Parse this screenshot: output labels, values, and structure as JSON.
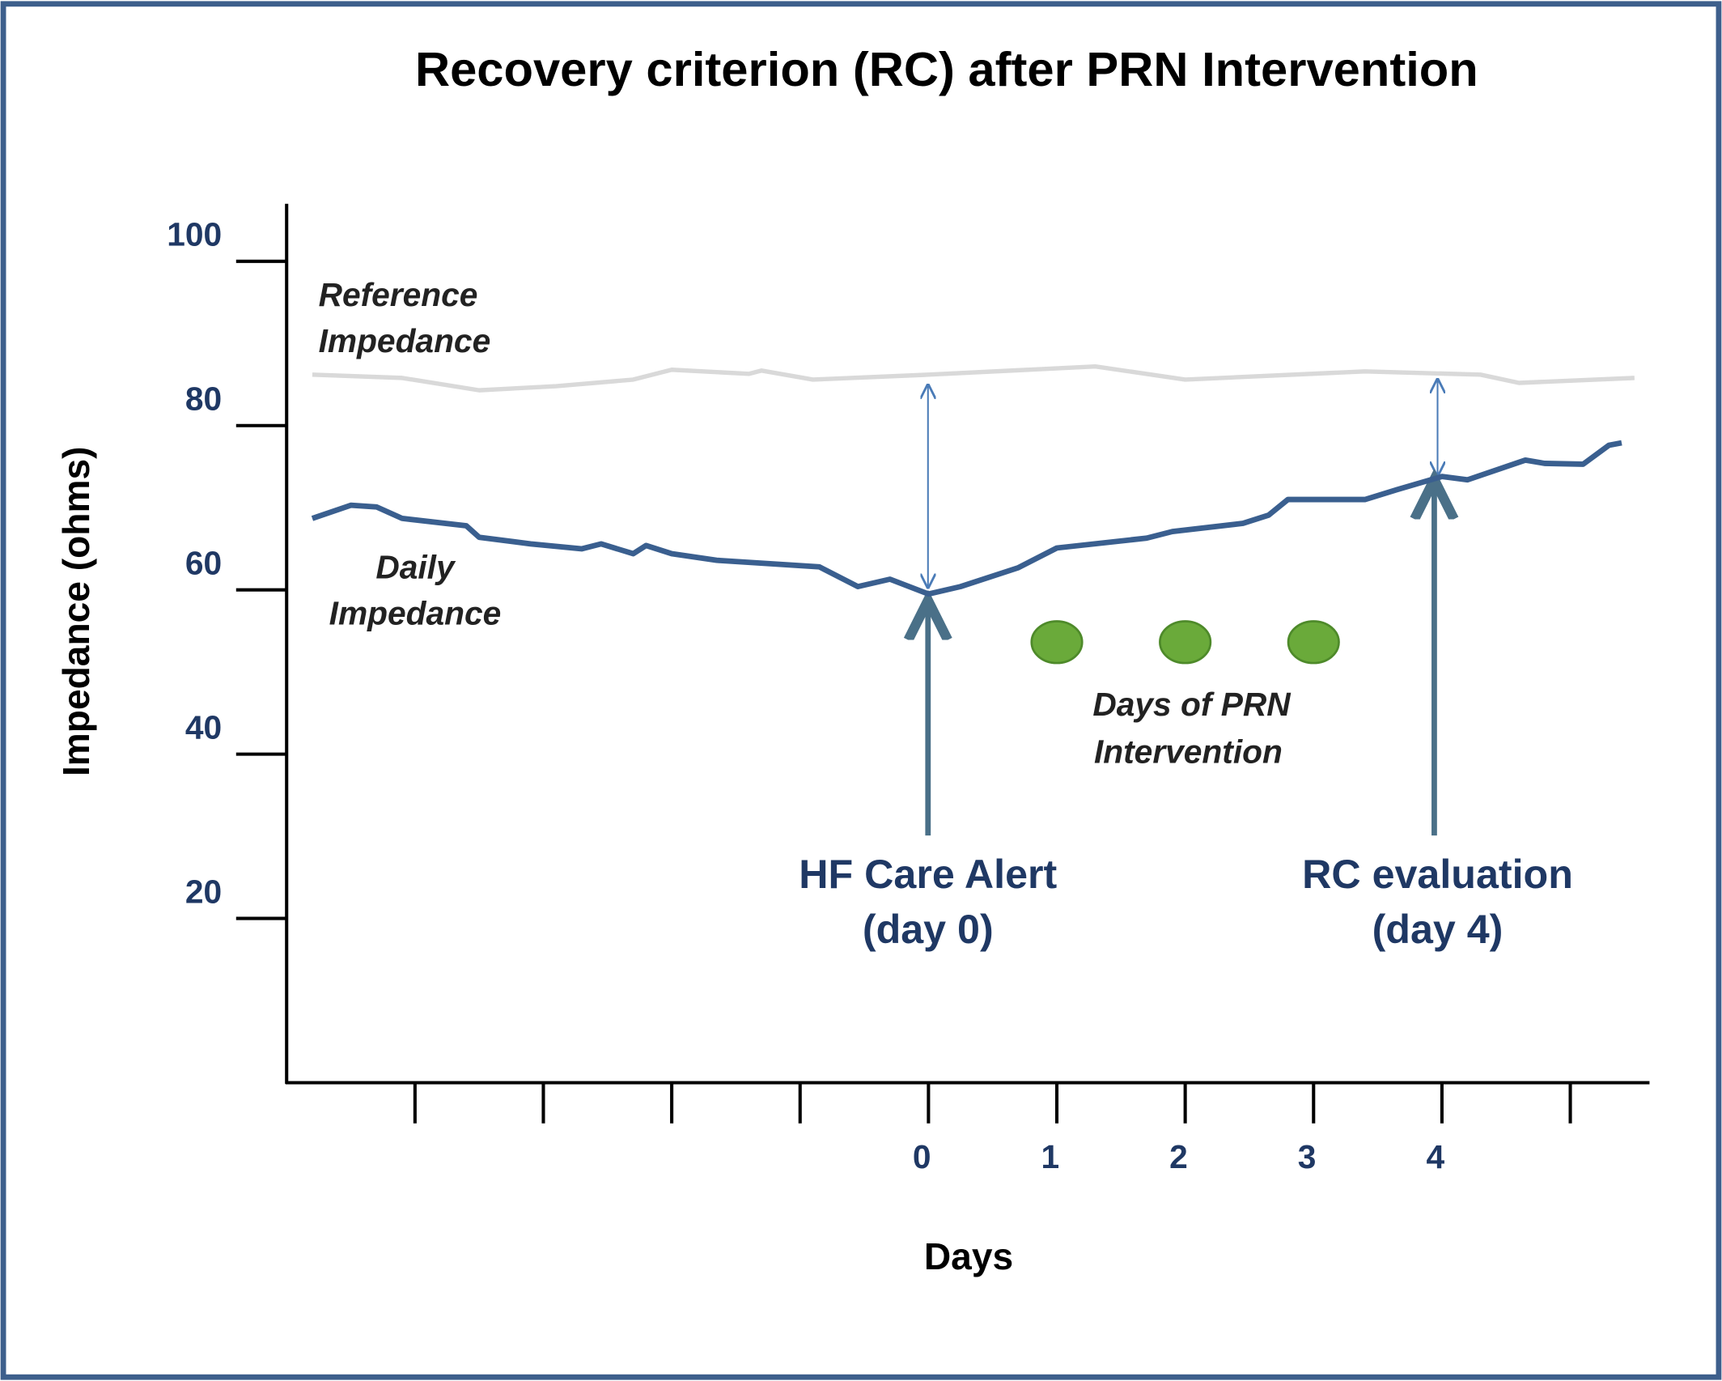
{
  "chart_data": {
    "type": "line",
    "title": "Recovery criterion (RC) after PRN Intervention",
    "x_label": "Days",
    "y_label": "Impedance (ohms)",
    "xlim": [
      -5,
      5.6
    ],
    "xticks": [
      {
        "value": -4,
        "label": null
      },
      {
        "value": -3,
        "label": null
      },
      {
        "value": -2,
        "label": null
      },
      {
        "value": -1,
        "label": null
      },
      0,
      1,
      2,
      3,
      4,
      {
        "value": 5,
        "label": null
      }
    ],
    "ylim": [
      0,
      107
    ],
    "yticks": [
      20,
      40,
      60,
      80,
      100
    ],
    "series": [
      {
        "name": "Reference Impedance",
        "color": "#d9d9d9",
        "x": [
          -4.8,
          -4.1,
          -3.5,
          -2.9,
          -2.3,
          -2.0,
          -1.4,
          -1.3,
          -0.9,
          0,
          1.3,
          2.0,
          3.4,
          4.3,
          4.6,
          5.5
        ],
        "values": [
          86.2,
          85.8,
          84.3,
          84.8,
          85.6,
          86.8,
          86.3,
          86.7,
          85.6,
          86.2,
          87.2,
          85.6,
          86.6,
          86.2,
          85.2,
          85.8
        ]
      },
      {
        "name": "Daily Impedance",
        "color": "#3a5f8f",
        "x": [
          -4.8,
          -4.5,
          -4.3,
          -4.1,
          -3.6,
          -3.5,
          -3.1,
          -2.7,
          -2.55,
          -2.3,
          -2.2,
          -2.0,
          -1.65,
          -0.85,
          -0.55,
          -0.3,
          0,
          0.25,
          0.7,
          1.0,
          1.7,
          1.9,
          2.45,
          2.65,
          2.8,
          3.4,
          3.65,
          4.0,
          4.2,
          4.65,
          4.8,
          5.1,
          5.3,
          5.4
        ],
        "values": [
          68.7,
          70.3,
          70.1,
          68.7,
          67.8,
          66.4,
          65.6,
          65.0,
          65.6,
          64.4,
          65.4,
          64.4,
          63.6,
          62.8,
          60.4,
          61.3,
          59.5,
          60.4,
          62.7,
          65.1,
          66.3,
          67.1,
          68.1,
          69.1,
          71.0,
          71.0,
          72.2,
          73.8,
          73.4,
          75.8,
          75.4,
          75.3,
          77.6,
          77.9
        ]
      }
    ],
    "intervention_days": [
      1,
      2,
      3
    ],
    "intervention_color": "#6aaa3a",
    "annotations": {
      "reference_label": [
        "Reference",
        "Impedance"
      ],
      "daily_label": [
        "Daily",
        "Impedance"
      ],
      "prn_label": [
        "Days of PRN",
        "Intervention"
      ],
      "alert_label": [
        "HF Care Alert",
        "(day 0)"
      ],
      "rc_label": [
        "RC evaluation",
        "(day 4)"
      ]
    }
  }
}
